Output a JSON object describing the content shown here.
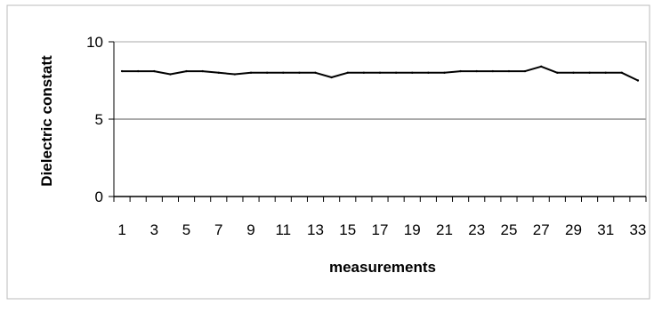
{
  "chart_data": {
    "type": "line",
    "title": "",
    "xlabel": "measurements",
    "ylabel": "Dielectric constatt",
    "ylim": [
      0,
      10
    ],
    "y_ticks": [
      "0",
      "5",
      "10"
    ],
    "x_ticks": [
      "1",
      "3",
      "5",
      "7",
      "9",
      "11",
      "13",
      "15",
      "17",
      "19",
      "21",
      "23",
      "25",
      "27",
      "29",
      "31",
      "33"
    ],
    "grid": "horizontal",
    "legend": "none",
    "x": [
      1,
      2,
      3,
      4,
      5,
      6,
      7,
      8,
      9,
      10,
      11,
      12,
      13,
      14,
      15,
      16,
      17,
      18,
      19,
      20,
      21,
      22,
      23,
      24,
      25,
      26,
      27,
      28,
      29,
      30,
      31,
      32,
      33
    ],
    "series": [
      {
        "values": [
          8.1,
          8.1,
          8.1,
          7.9,
          8.1,
          8.1,
          8.0,
          7.9,
          8.0,
          8.0,
          8.0,
          8.0,
          8.0,
          7.7,
          8.0,
          8.0,
          8.0,
          8.0,
          8.0,
          8.0,
          8.0,
          8.1,
          8.1,
          8.1,
          8.1,
          8.1,
          8.4,
          8.0,
          8.0,
          8.0,
          8.0,
          8.0,
          7.5
        ],
        "color": "#000000"
      }
    ]
  }
}
